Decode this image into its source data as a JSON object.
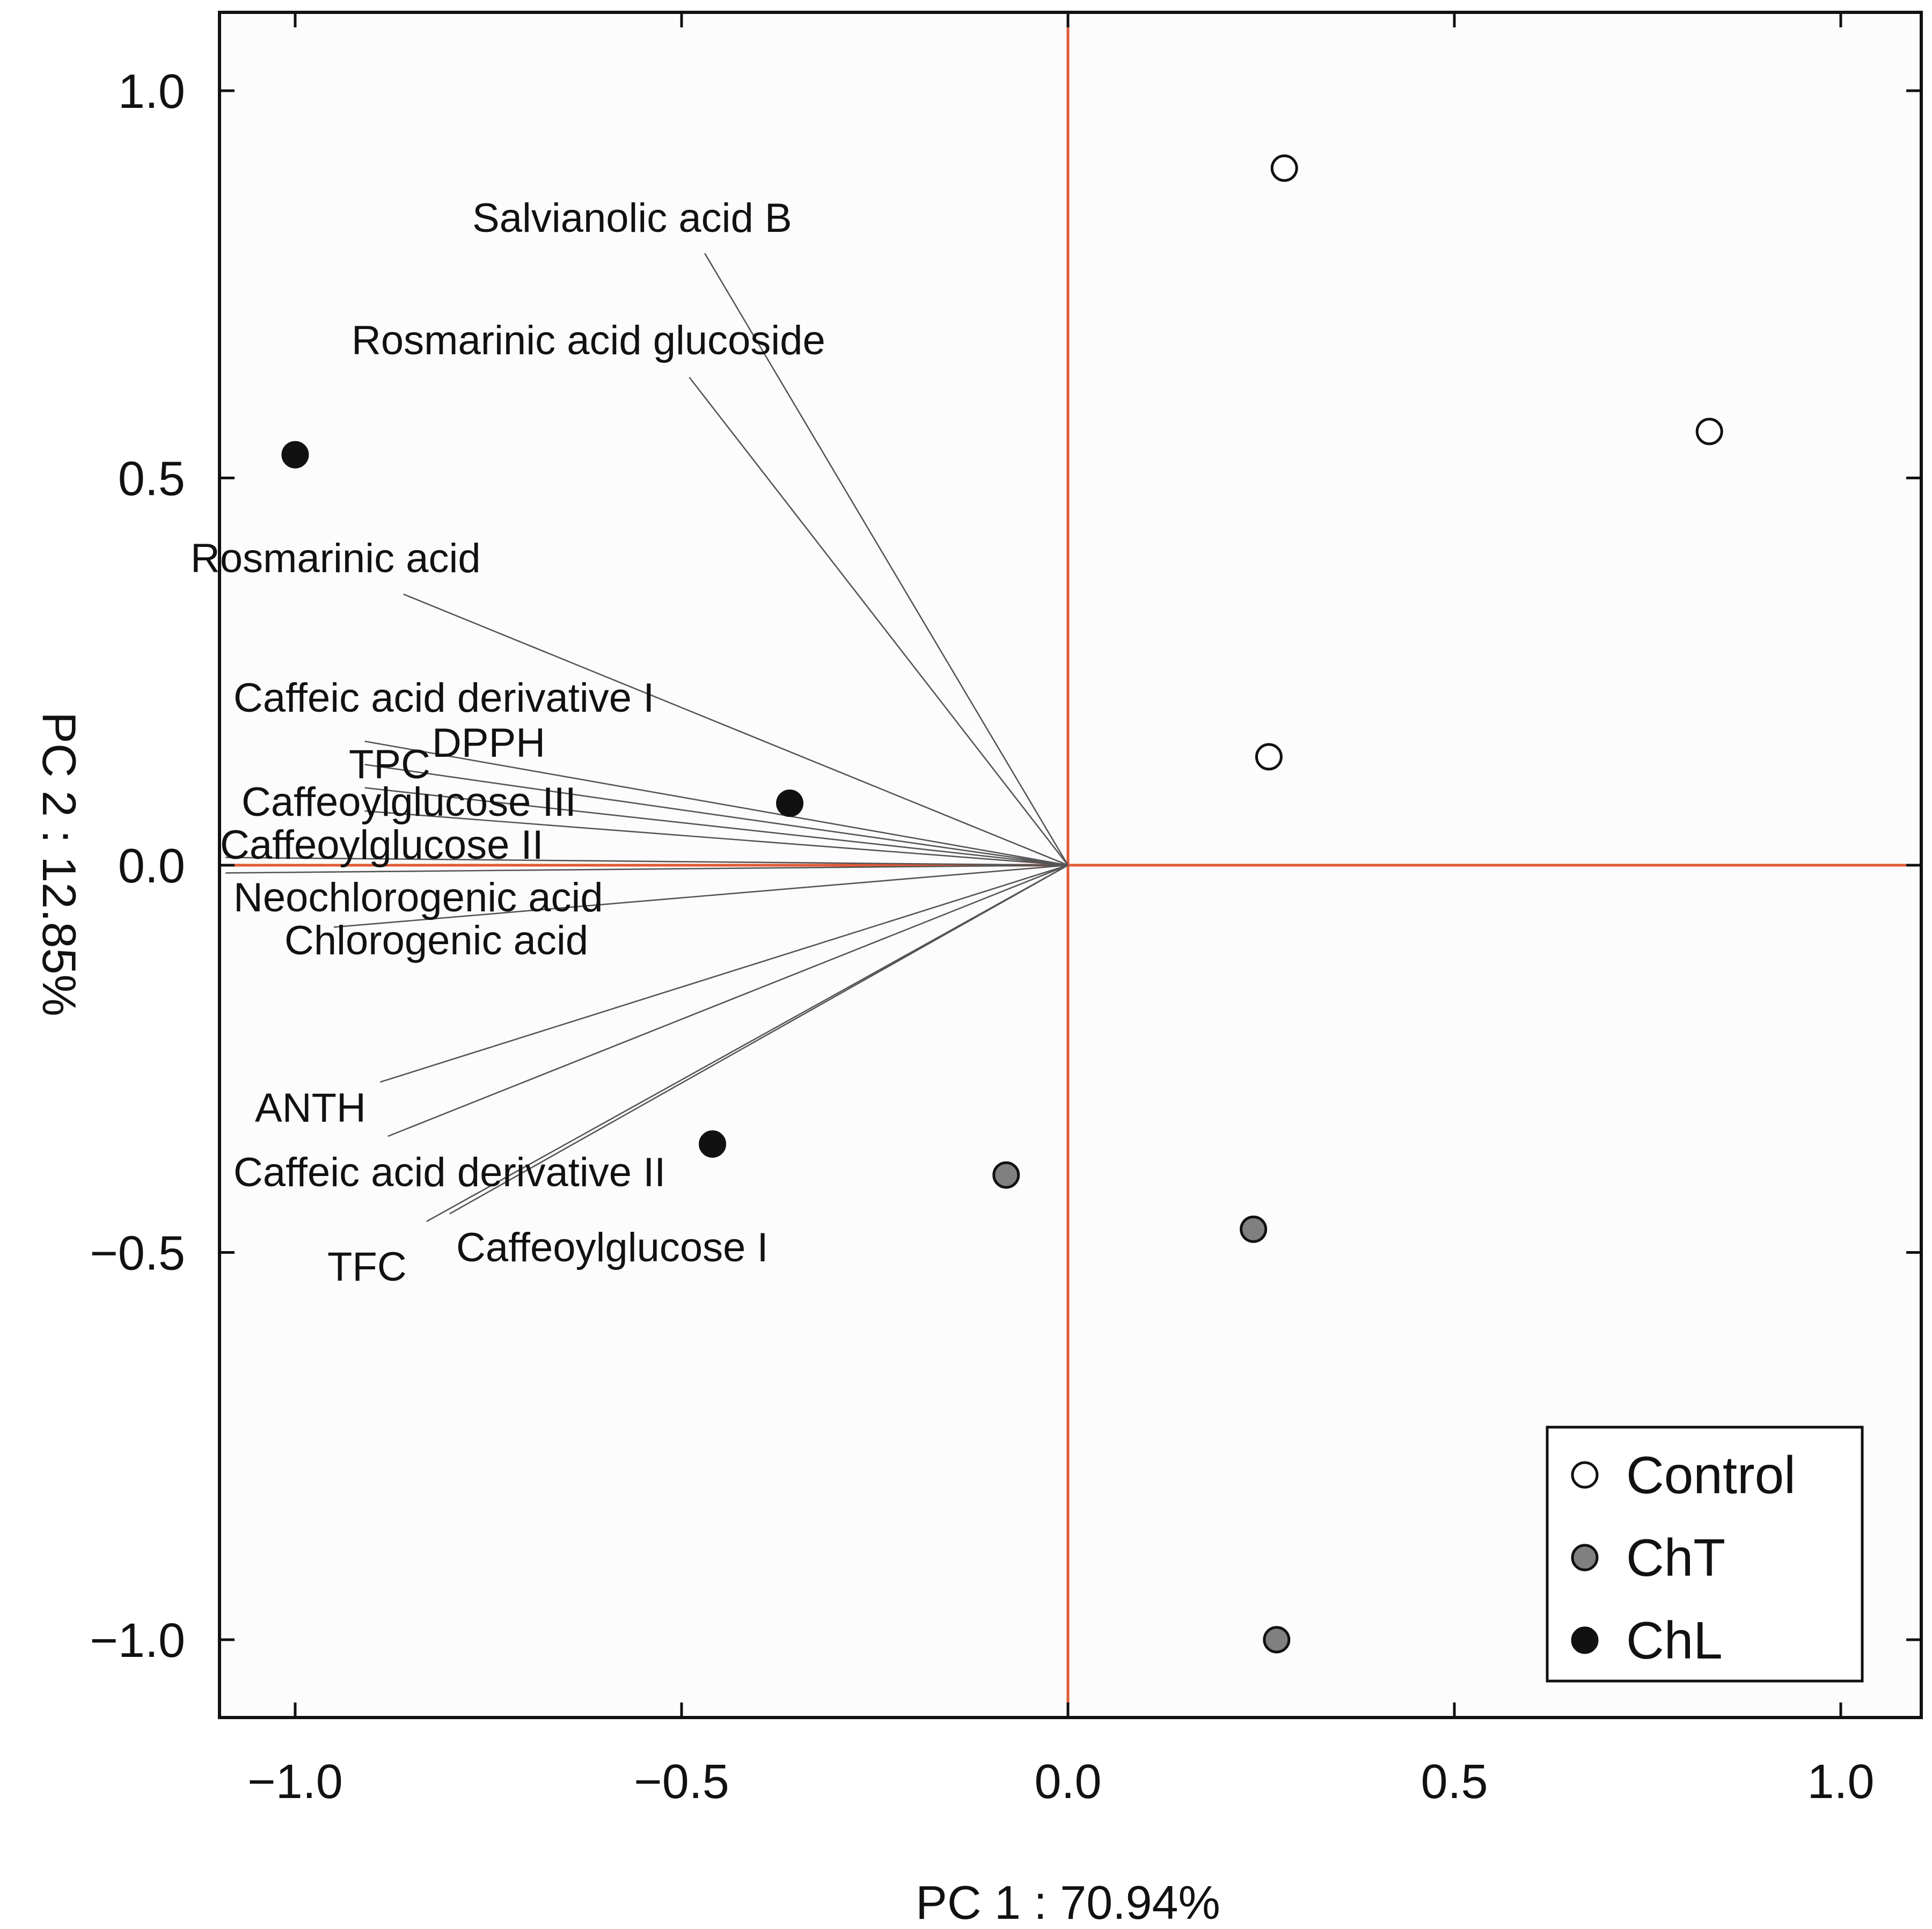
{
  "chart_data": {
    "type": "scatter",
    "subtype": "pca-biplot",
    "title": "",
    "xlabel": "PC 1 : 70.94%",
    "ylabel": "PC 2 : 12.85%",
    "xlim": [
      -1.1,
      1.1
    ],
    "ylim": [
      -1.1,
      1.1
    ],
    "xticks": [
      -1.0,
      -0.5,
      0.0,
      0.5,
      1.0
    ],
    "yticks": [
      -1.0,
      -0.5,
      0.0,
      0.5,
      1.0
    ],
    "tick_labels": [
      "−1.0",
      "−0.5",
      "0.0",
      "0.5",
      "1.0"
    ],
    "grid": false,
    "reference_lines": {
      "x": 0,
      "y": 0,
      "color": "#e05a36"
    },
    "loadings": [
      {
        "name": "Salvianolic acid B",
        "x": -0.47,
        "y": 0.79
      },
      {
        "name": "Rosmarinic acid glucoside",
        "x": -0.49,
        "y": 0.63
      },
      {
        "name": "Rosmarinic acid",
        "x": -0.86,
        "y": 0.35
      },
      {
        "name": "Caffeic acid derivative I",
        "x": -0.91,
        "y": 0.16
      },
      {
        "name": "DPPH",
        "x": -0.91,
        "y": 0.13
      },
      {
        "name": "TPC",
        "x": -0.91,
        "y": 0.1
      },
      {
        "name": "Caffeoylglucose III",
        "x": -0.91,
        "y": 0.07
      },
      {
        "name": "Caffeoylglucose II",
        "x": -1.09,
        "y": 0.01
      },
      {
        "name": "Neochlorogenic acid",
        "x": -1.09,
        "y": -0.01
      },
      {
        "name": "Chlorogenic acid",
        "x": -0.95,
        "y": -0.08
      },
      {
        "name": "ANTH",
        "x": -0.89,
        "y": -0.28
      },
      {
        "name": "Caffeic acid derivative II",
        "x": -0.88,
        "y": -0.35
      },
      {
        "name": "TFC",
        "x": -0.83,
        "y": -0.46
      },
      {
        "name": "Caffeoylglucose I",
        "x": -0.8,
        "y": -0.45
      }
    ],
    "series": [
      {
        "name": "Control",
        "fill": "#ffffff",
        "points": [
          {
            "x": 0.28,
            "y": 0.9
          },
          {
            "x": 0.83,
            "y": 0.56
          },
          {
            "x": 0.26,
            "y": 0.14
          }
        ]
      },
      {
        "name": "ChT",
        "fill": "#808080",
        "points": [
          {
            "x": -0.08,
            "y": -0.4
          },
          {
            "x": 0.24,
            "y": -0.47
          },
          {
            "x": 0.27,
            "y": -1.0
          }
        ]
      },
      {
        "name": "ChL",
        "fill": "#111111",
        "points": [
          {
            "x": -1.0,
            "y": 0.53
          },
          {
            "x": -0.36,
            "y": 0.08
          },
          {
            "x": -0.46,
            "y": -0.36
          }
        ]
      }
    ],
    "legend": {
      "position": "bottom-right",
      "entries": [
        "Control",
        "ChT",
        "ChL"
      ]
    }
  }
}
